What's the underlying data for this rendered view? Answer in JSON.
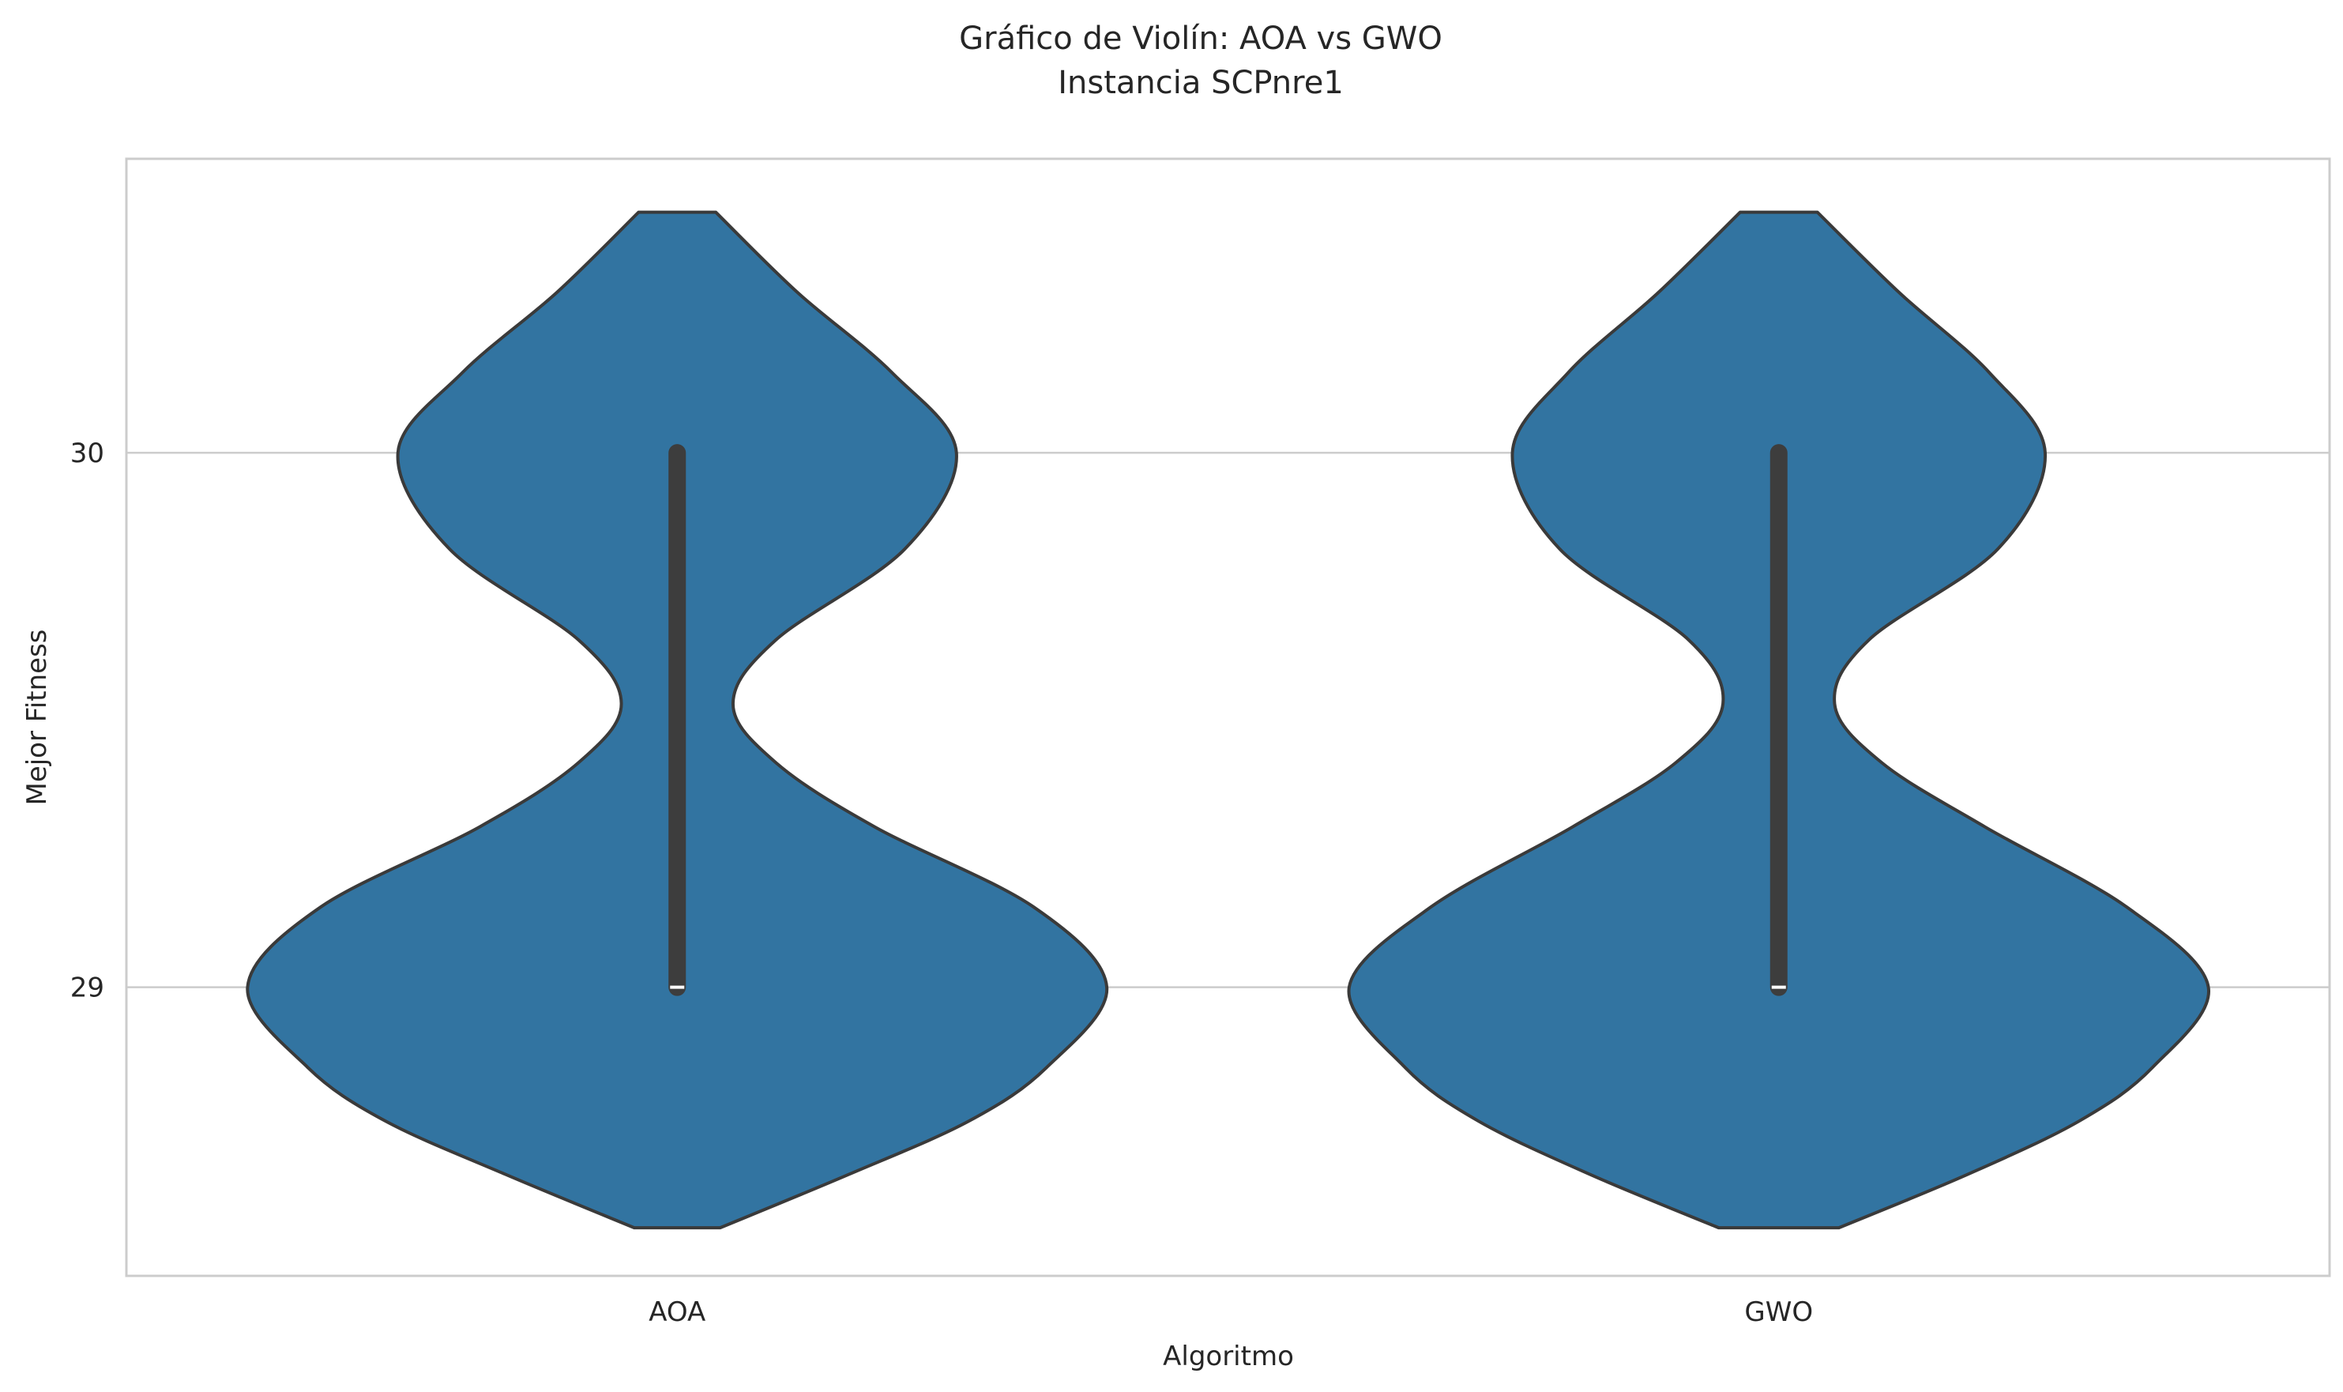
{
  "chart_data": {
    "type": "violin",
    "title": "Gráfico de Violín: AOA vs GWO",
    "subtitle": "Instancia SCPnre1",
    "xlabel": "Algoritmo",
    "ylabel": "Mejor Fitness",
    "categories": [
      "AOA",
      "GWO"
    ],
    "yticks": [
      29,
      30
    ],
    "ylim": [
      28.46,
      30.55
    ],
    "grid": "horizontal",
    "colors": {
      "fill": "#3274a1",
      "edge": "#3a3a3a",
      "box": "#3d3d3d",
      "median": "#ffffff",
      "grid": "#cccccc",
      "spine": "#cccccc"
    },
    "series": [
      {
        "name": "AOA",
        "min": 29,
        "q1": 29,
        "median": 29,
        "q3": 30,
        "max": 30,
        "density": [
          [
            28.55,
            0.1
          ],
          [
            28.65,
            0.4
          ],
          [
            28.75,
            0.68
          ],
          [
            28.85,
            0.86
          ],
          [
            29.0,
            1.0
          ],
          [
            29.15,
            0.83
          ],
          [
            29.3,
            0.46
          ],
          [
            29.42,
            0.23
          ],
          [
            29.53,
            0.13
          ],
          [
            29.65,
            0.23
          ],
          [
            29.82,
            0.53
          ],
          [
            30.0,
            0.65
          ],
          [
            30.15,
            0.5
          ],
          [
            30.3,
            0.28
          ],
          [
            30.45,
            0.09
          ]
        ]
      },
      {
        "name": "GWO",
        "min": 29,
        "q1": 29,
        "median": 29,
        "q3": 30,
        "max": 30,
        "density": [
          [
            28.55,
            0.14
          ],
          [
            28.65,
            0.44
          ],
          [
            28.75,
            0.7
          ],
          [
            28.85,
            0.87
          ],
          [
            29.0,
            1.0
          ],
          [
            29.15,
            0.81
          ],
          [
            29.3,
            0.48
          ],
          [
            29.42,
            0.24
          ],
          [
            29.53,
            0.13
          ],
          [
            29.65,
            0.21
          ],
          [
            29.82,
            0.51
          ],
          [
            30.0,
            0.62
          ],
          [
            30.15,
            0.49
          ],
          [
            30.3,
            0.28
          ],
          [
            30.45,
            0.09
          ]
        ]
      }
    ]
  }
}
